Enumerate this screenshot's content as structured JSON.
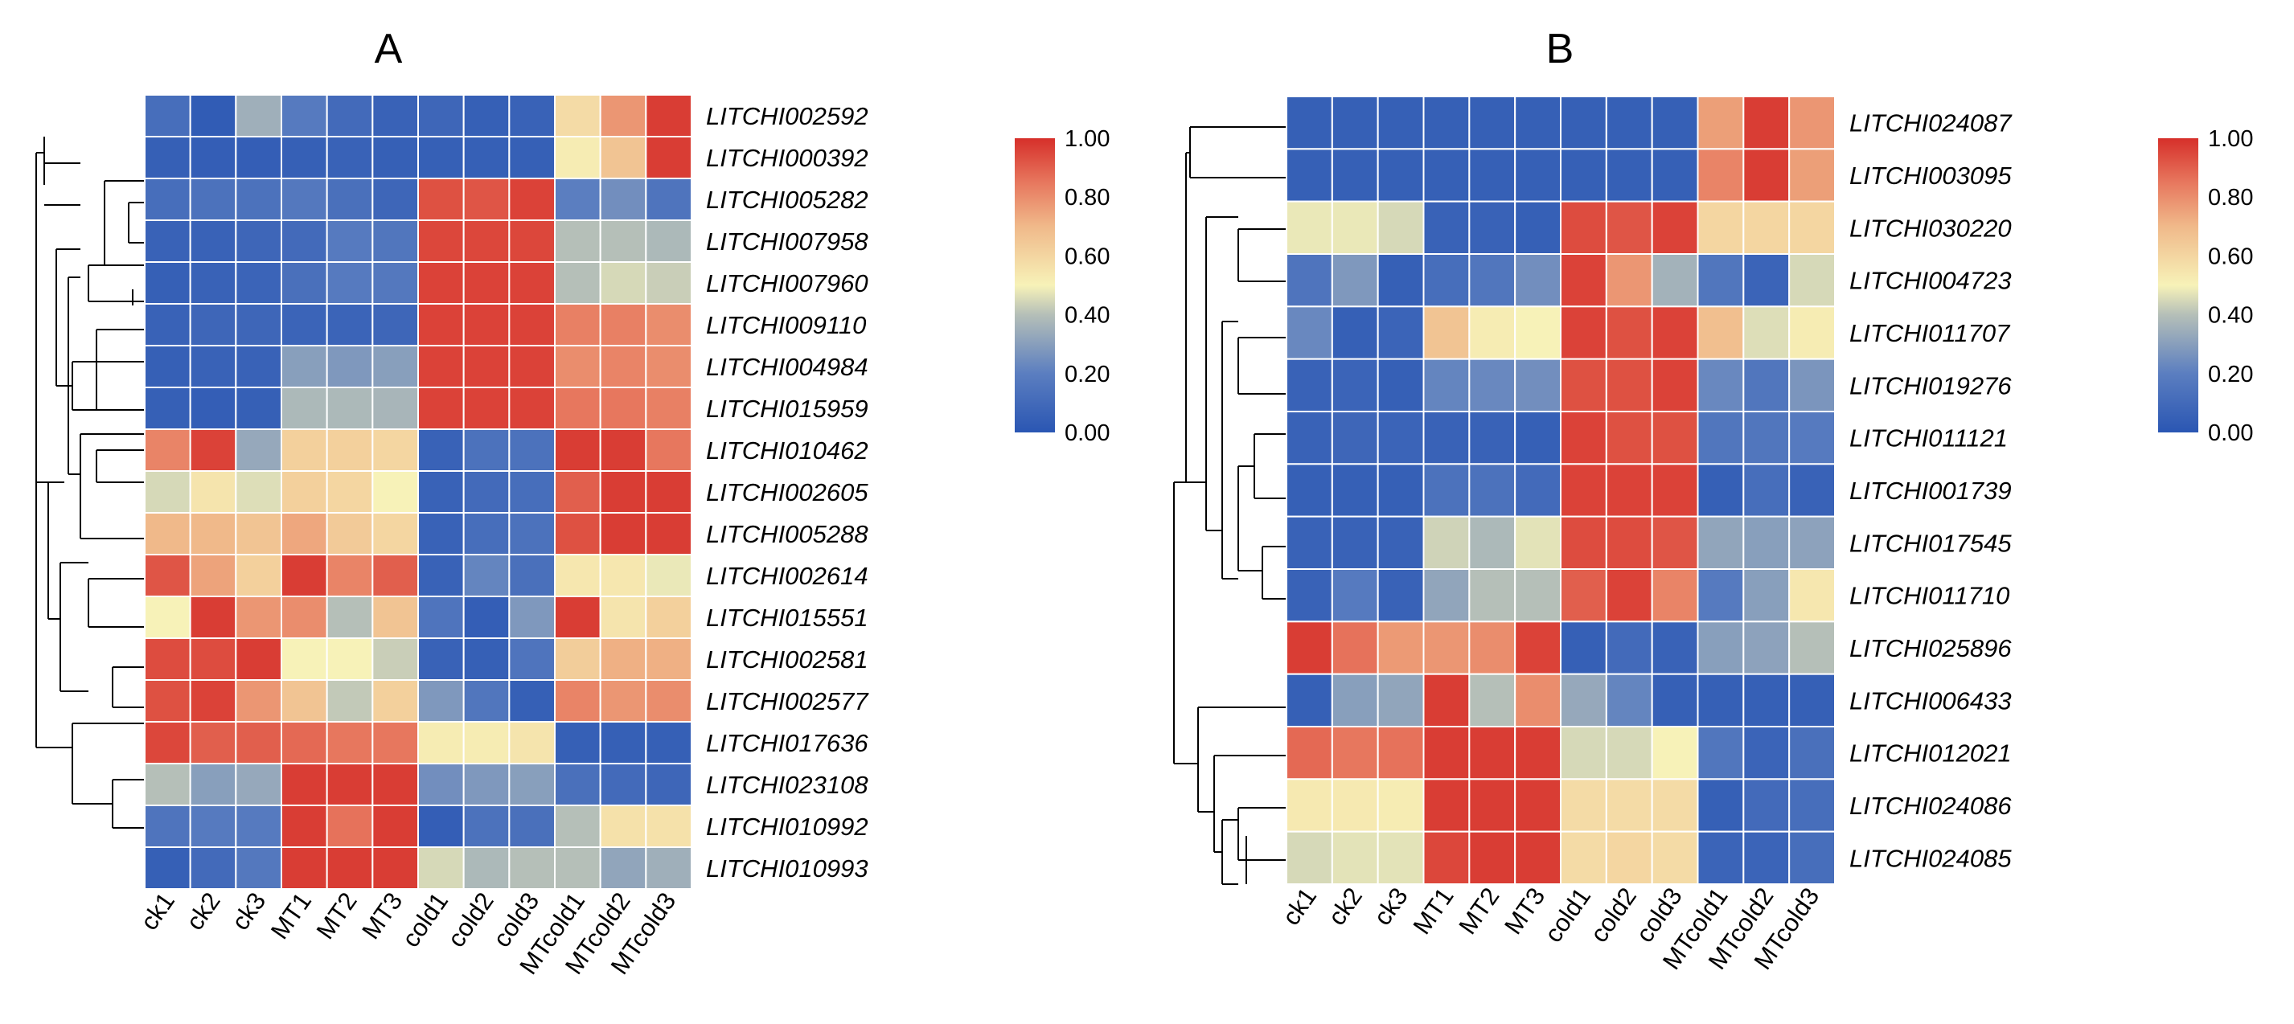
{
  "chart_data": [
    {
      "type": "heatmap",
      "title": "A",
      "columns": [
        "ck1",
        "ck2",
        "ck3",
        "MT1",
        "MT2",
        "MT3",
        "cold1",
        "cold2",
        "cold3",
        "MTcold1",
        "MTcold2",
        "MTcold3"
      ],
      "rows": [
        {
          "gene": "LITCHI002592",
          "values": [
            0.12,
            0.03,
            0.35,
            0.18,
            0.1,
            0.06,
            0.08,
            0.05,
            0.06,
            0.58,
            0.78,
            0.97
          ]
        },
        {
          "gene": "LITCHI000392",
          "values": [
            0.05,
            0.04,
            0.04,
            0.05,
            0.06,
            0.05,
            0.05,
            0.05,
            0.05,
            0.52,
            0.66,
            0.97
          ]
        },
        {
          "gene": "LITCHI005282",
          "values": [
            0.12,
            0.14,
            0.14,
            0.17,
            0.13,
            0.08,
            0.93,
            0.92,
            0.96,
            0.2,
            0.25,
            0.15
          ]
        },
        {
          "gene": "LITCHI007958",
          "values": [
            0.06,
            0.06,
            0.08,
            0.1,
            0.18,
            0.16,
            0.95,
            0.95,
            0.95,
            0.4,
            0.4,
            0.38
          ]
        },
        {
          "gene": "LITCHI007960",
          "values": [
            0.05,
            0.06,
            0.07,
            0.13,
            0.18,
            0.17,
            0.96,
            0.96,
            0.96,
            0.4,
            0.45,
            0.43
          ]
        },
        {
          "gene": "LITCHI009110",
          "values": [
            0.06,
            0.08,
            0.08,
            0.07,
            0.07,
            0.08,
            0.96,
            0.96,
            0.96,
            0.83,
            0.83,
            0.8
          ]
        },
        {
          "gene": "LITCHI004984",
          "values": [
            0.05,
            0.06,
            0.06,
            0.3,
            0.28,
            0.3,
            0.96,
            0.96,
            0.96,
            0.8,
            0.82,
            0.8
          ]
        },
        {
          "gene": "LITCHI015959",
          "values": [
            0.05,
            0.04,
            0.05,
            0.38,
            0.38,
            0.37,
            0.96,
            0.96,
            0.96,
            0.85,
            0.85,
            0.83
          ]
        },
        {
          "gene": "LITCHI010462",
          "values": [
            0.82,
            0.96,
            0.33,
            0.62,
            0.62,
            0.6,
            0.06,
            0.14,
            0.14,
            0.97,
            0.97,
            0.85
          ]
        },
        {
          "gene": "LITCHI002605",
          "values": [
            0.45,
            0.55,
            0.46,
            0.62,
            0.6,
            0.5,
            0.06,
            0.1,
            0.12,
            0.9,
            0.97,
            0.97
          ]
        },
        {
          "gene": "LITCHI005288",
          "values": [
            0.7,
            0.7,
            0.66,
            0.74,
            0.64,
            0.6,
            0.06,
            0.12,
            0.14,
            0.93,
            0.97,
            0.97
          ]
        },
        {
          "gene": "LITCHI002614",
          "values": [
            0.92,
            0.75,
            0.62,
            0.97,
            0.82,
            0.9,
            0.06,
            0.22,
            0.13,
            0.54,
            0.54,
            0.48
          ]
        },
        {
          "gene": "LITCHI015551",
          "values": [
            0.5,
            0.97,
            0.78,
            0.8,
            0.4,
            0.66,
            0.15,
            0.04,
            0.28,
            0.97,
            0.55,
            0.62
          ]
        },
        {
          "gene": "LITCHI002581",
          "values": [
            0.94,
            0.94,
            0.97,
            0.5,
            0.5,
            0.43,
            0.06,
            0.05,
            0.15,
            0.63,
            0.72,
            0.72
          ]
        },
        {
          "gene": "LITCHI002577",
          "values": [
            0.93,
            0.96,
            0.78,
            0.66,
            0.42,
            0.62,
            0.28,
            0.16,
            0.05,
            0.82,
            0.78,
            0.8
          ]
        },
        {
          "gene": "LITCHI017636",
          "values": [
            0.95,
            0.9,
            0.9,
            0.88,
            0.85,
            0.85,
            0.52,
            0.52,
            0.55,
            0.05,
            0.05,
            0.05
          ]
        },
        {
          "gene": "LITCHI023108",
          "values": [
            0.4,
            0.3,
            0.33,
            0.97,
            0.97,
            0.97,
            0.25,
            0.28,
            0.3,
            0.13,
            0.1,
            0.08
          ]
        },
        {
          "gene": "LITCHI010992",
          "values": [
            0.15,
            0.18,
            0.18,
            0.97,
            0.86,
            0.97,
            0.04,
            0.14,
            0.13,
            0.4,
            0.56,
            0.56
          ]
        },
        {
          "gene": "LITCHI010993",
          "values": [
            0.05,
            0.1,
            0.17,
            0.97,
            0.97,
            0.97,
            0.45,
            0.38,
            0.4,
            0.4,
            0.32,
            0.35
          ]
        }
      ],
      "colorbar": {
        "ticks": [
          "1.00",
          "0.80",
          "0.60",
          "0.40",
          "0.20",
          "0.00"
        ],
        "range": [
          0,
          1
        ]
      }
    },
    {
      "type": "heatmap",
      "title": "B",
      "columns": [
        "ck1",
        "ck2",
        "ck3",
        "MT1",
        "MT2",
        "MT3",
        "cold1",
        "cold2",
        "cold3",
        "MTcold1",
        "MTcold2",
        "MTcold3"
      ],
      "rows": [
        {
          "gene": "LITCHI024087",
          "values": [
            0.05,
            0.05,
            0.05,
            0.05,
            0.05,
            0.05,
            0.05,
            0.05,
            0.05,
            0.76,
            0.97,
            0.78
          ]
        },
        {
          "gene": "LITCHI003095",
          "values": [
            0.05,
            0.05,
            0.05,
            0.05,
            0.05,
            0.05,
            0.05,
            0.05,
            0.05,
            0.82,
            0.97,
            0.76
          ]
        },
        {
          "gene": "LITCHI030220",
          "values": [
            0.48,
            0.48,
            0.45,
            0.06,
            0.06,
            0.05,
            0.94,
            0.92,
            0.96,
            0.6,
            0.6,
            0.6
          ]
        },
        {
          "gene": "LITCHI004723",
          "values": [
            0.15,
            0.28,
            0.05,
            0.12,
            0.16,
            0.25,
            0.96,
            0.78,
            0.36,
            0.16,
            0.07,
            0.45
          ]
        },
        {
          "gene": "LITCHI011707",
          "values": [
            0.23,
            0.05,
            0.07,
            0.66,
            0.52,
            0.5,
            0.96,
            0.93,
            0.96,
            0.68,
            0.46,
            0.52
          ]
        },
        {
          "gene": "LITCHI019276",
          "values": [
            0.06,
            0.07,
            0.05,
            0.22,
            0.23,
            0.25,
            0.93,
            0.93,
            0.96,
            0.23,
            0.16,
            0.27
          ]
        },
        {
          "gene": "LITCHI011121",
          "values": [
            0.06,
            0.08,
            0.07,
            0.06,
            0.06,
            0.05,
            0.96,
            0.93,
            0.93,
            0.16,
            0.16,
            0.18
          ]
        },
        {
          "gene": "LITCHI001739",
          "values": [
            0.05,
            0.05,
            0.05,
            0.14,
            0.14,
            0.1,
            0.96,
            0.96,
            0.96,
            0.05,
            0.12,
            0.06
          ]
        },
        {
          "gene": "LITCHI017545",
          "values": [
            0.06,
            0.06,
            0.06,
            0.44,
            0.38,
            0.47,
            0.94,
            0.94,
            0.92,
            0.32,
            0.3,
            0.31
          ]
        },
        {
          "gene": "LITCHI011710",
          "values": [
            0.06,
            0.18,
            0.06,
            0.32,
            0.4,
            0.4,
            0.9,
            0.96,
            0.82,
            0.18,
            0.3,
            0.54
          ]
        },
        {
          "gene": "LITCHI025896",
          "values": [
            0.97,
            0.86,
            0.77,
            0.78,
            0.8,
            0.96,
            0.05,
            0.1,
            0.06,
            0.3,
            0.31,
            0.4
          ]
        },
        {
          "gene": "LITCHI006433",
          "values": [
            0.05,
            0.3,
            0.32,
            0.97,
            0.4,
            0.8,
            0.33,
            0.22,
            0.05,
            0.05,
            0.05,
            0.05
          ]
        },
        {
          "gene": "LITCHI012021",
          "values": [
            0.88,
            0.85,
            0.86,
            0.97,
            0.97,
            0.97,
            0.45,
            0.45,
            0.5,
            0.16,
            0.07,
            0.13
          ]
        },
        {
          "gene": "LITCHI024086",
          "values": [
            0.53,
            0.53,
            0.52,
            0.97,
            0.97,
            0.97,
            0.58,
            0.58,
            0.58,
            0.05,
            0.1,
            0.12
          ]
        },
        {
          "gene": "LITCHI024085",
          "values": [
            0.45,
            0.47,
            0.47,
            0.95,
            0.97,
            0.97,
            0.58,
            0.6,
            0.58,
            0.07,
            0.07,
            0.12
          ]
        }
      ],
      "colorbar": {
        "ticks": [
          "1.00",
          "0.80",
          "0.60",
          "0.40",
          "0.20",
          "0.00"
        ],
        "range": [
          0,
          1
        ]
      }
    }
  ],
  "colors": {
    "low": "#2a56b3",
    "mid": "#f7f2b8",
    "high": "#d62f2a"
  }
}
